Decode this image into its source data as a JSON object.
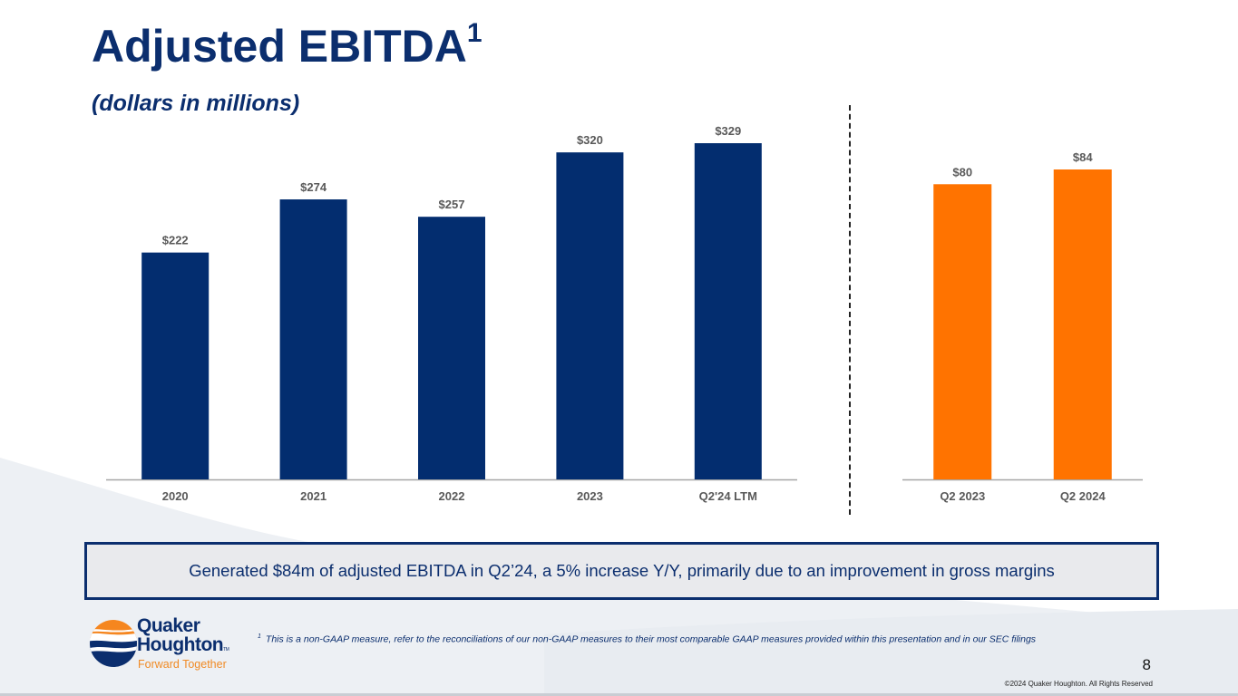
{
  "slide": {
    "title": "Adjusted EBITDA",
    "title_superscript": "1",
    "subtitle": "(dollars in millions)",
    "callout": "Generated $84m of adjusted EBITDA in Q2’24, a 5% increase Y/Y, primarily due to an improvement in gross margins",
    "footnote_marker": "1",
    "footnote": "This is a non-GAAP measure, refer to the reconciliations of our non-GAAP measures to their most comparable GAAP measures provided within this presentation and in our SEC filings",
    "page_number": "8",
    "copyright": "©2024 Quaker Houghton. All Rights Reserved",
    "logo": {
      "line1": "Quaker",
      "line2": "Houghton",
      "tm": "TM",
      "tagline": "Forward Together"
    },
    "colors": {
      "navy": "#032d6f",
      "orange": "#ff7300",
      "label_gray": "#595959"
    }
  },
  "chart_data": [
    {
      "type": "bar",
      "title": "Adjusted EBITDA",
      "xlabel": "",
      "ylabel": "",
      "categories": [
        "2020",
        "2021",
        "2022",
        "2023",
        "Q2'24 LTM"
      ],
      "values": [
        222,
        274,
        257,
        320,
        329
      ],
      "data_labels": [
        "$222",
        "$274",
        "$257",
        "$320",
        "$329"
      ],
      "ylim": [
        0,
        329
      ],
      "grid": false,
      "color": "#032d6f"
    },
    {
      "type": "bar",
      "title": "Adjusted EBITDA (quarterly)",
      "xlabel": "",
      "ylabel": "",
      "categories": [
        "Q2 2023",
        "Q2 2024"
      ],
      "values": [
        80,
        84
      ],
      "data_labels": [
        "$80",
        "$84"
      ],
      "ylim": [
        0,
        84
      ],
      "grid": false,
      "color": "#ff7300"
    }
  ]
}
